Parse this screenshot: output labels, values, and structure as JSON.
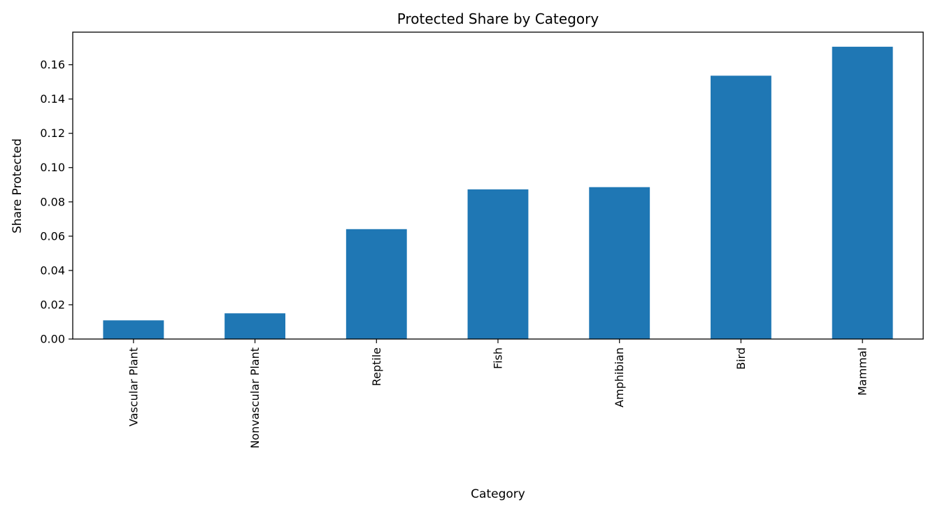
{
  "chart_data": {
    "type": "bar",
    "title": "Protected Share by Category",
    "xlabel": "Category",
    "ylabel": "Share Protected",
    "categories": [
      "Vascular Plant",
      "Nonvascular Plant",
      "Reptile",
      "Fish",
      "Amphibian",
      "Bird",
      "Mammal"
    ],
    "values": [
      0.0109,
      0.015,
      0.0641,
      0.0873,
      0.0886,
      0.1536,
      0.1705
    ],
    "ylim": [
      0,
      0.179
    ],
    "yticks": [
      0.0,
      0.02,
      0.04,
      0.06,
      0.08,
      0.1,
      0.12,
      0.14,
      0.16
    ],
    "ytick_labels": [
      "0.00",
      "0.02",
      "0.04",
      "0.06",
      "0.08",
      "0.10",
      "0.12",
      "0.14",
      "0.16"
    ],
    "bar_color": "#1f77b4",
    "grid": false,
    "legend": "none"
  }
}
